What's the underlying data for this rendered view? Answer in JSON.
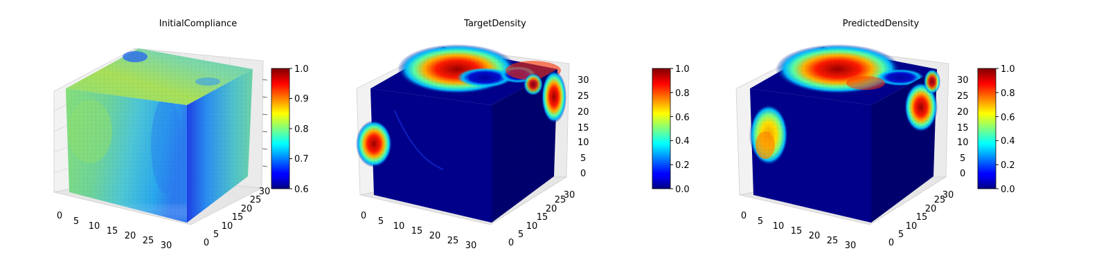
{
  "chart_data": [
    {
      "type": "heatmap",
      "subtype": "3d-voxel",
      "title": "InitialCompliance",
      "colormap": "jet",
      "colorbar": {
        "vmin": 0.6,
        "vmax": 1.0,
        "ticks": [
          "0.6",
          "0.7",
          "0.8",
          "0.9",
          "1.0"
        ]
      },
      "x_ticks": [
        "0",
        "5",
        "10",
        "15",
        "20",
        "25",
        "30"
      ],
      "y_ticks": [
        "0",
        "5",
        "10",
        "15",
        "20",
        "25",
        "30"
      ],
      "z_ticks": [],
      "xlim": [
        0,
        32
      ],
      "ylim": [
        0,
        32
      ],
      "zlim": [
        0,
        32
      ],
      "grid": true,
      "legend": "colorbar-right"
    },
    {
      "type": "heatmap",
      "subtype": "3d-voxel",
      "title": "TargetDensity",
      "colormap": "jet",
      "colorbar": {
        "vmin": 0.0,
        "vmax": 1.0,
        "ticks": [
          "0.0",
          "0.2",
          "0.4",
          "0.6",
          "0.8",
          "1.0"
        ]
      },
      "x_ticks": [
        "0",
        "5",
        "10",
        "15",
        "20",
        "25",
        "30"
      ],
      "y_ticks": [
        "0",
        "5",
        "10",
        "15",
        "20",
        "25",
        "30"
      ],
      "z_ticks": [
        "0",
        "5",
        "10",
        "15",
        "20",
        "25",
        "30"
      ],
      "xlim": [
        0,
        32
      ],
      "ylim": [
        0,
        32
      ],
      "zlim": [
        0,
        32
      ],
      "grid": true,
      "legend": "colorbar-right"
    },
    {
      "type": "heatmap",
      "subtype": "3d-voxel",
      "title": "PredictedDensity",
      "colormap": "jet",
      "colorbar": {
        "vmin": 0.0,
        "vmax": 1.0,
        "ticks": [
          "0.0",
          "0.2",
          "0.4",
          "0.6",
          "0.8",
          "1.0"
        ]
      },
      "x_ticks": [
        "0",
        "5",
        "10",
        "15",
        "20",
        "25",
        "30"
      ],
      "y_ticks": [
        "0",
        "5",
        "10",
        "15",
        "20",
        "25",
        "30"
      ],
      "z_ticks": [
        "0",
        "5",
        "10",
        "15",
        "20",
        "25",
        "30"
      ],
      "xlim": [
        0,
        32
      ],
      "ylim": [
        0,
        32
      ],
      "zlim": [
        0,
        32
      ],
      "grid": true,
      "legend": "colorbar-right"
    }
  ]
}
